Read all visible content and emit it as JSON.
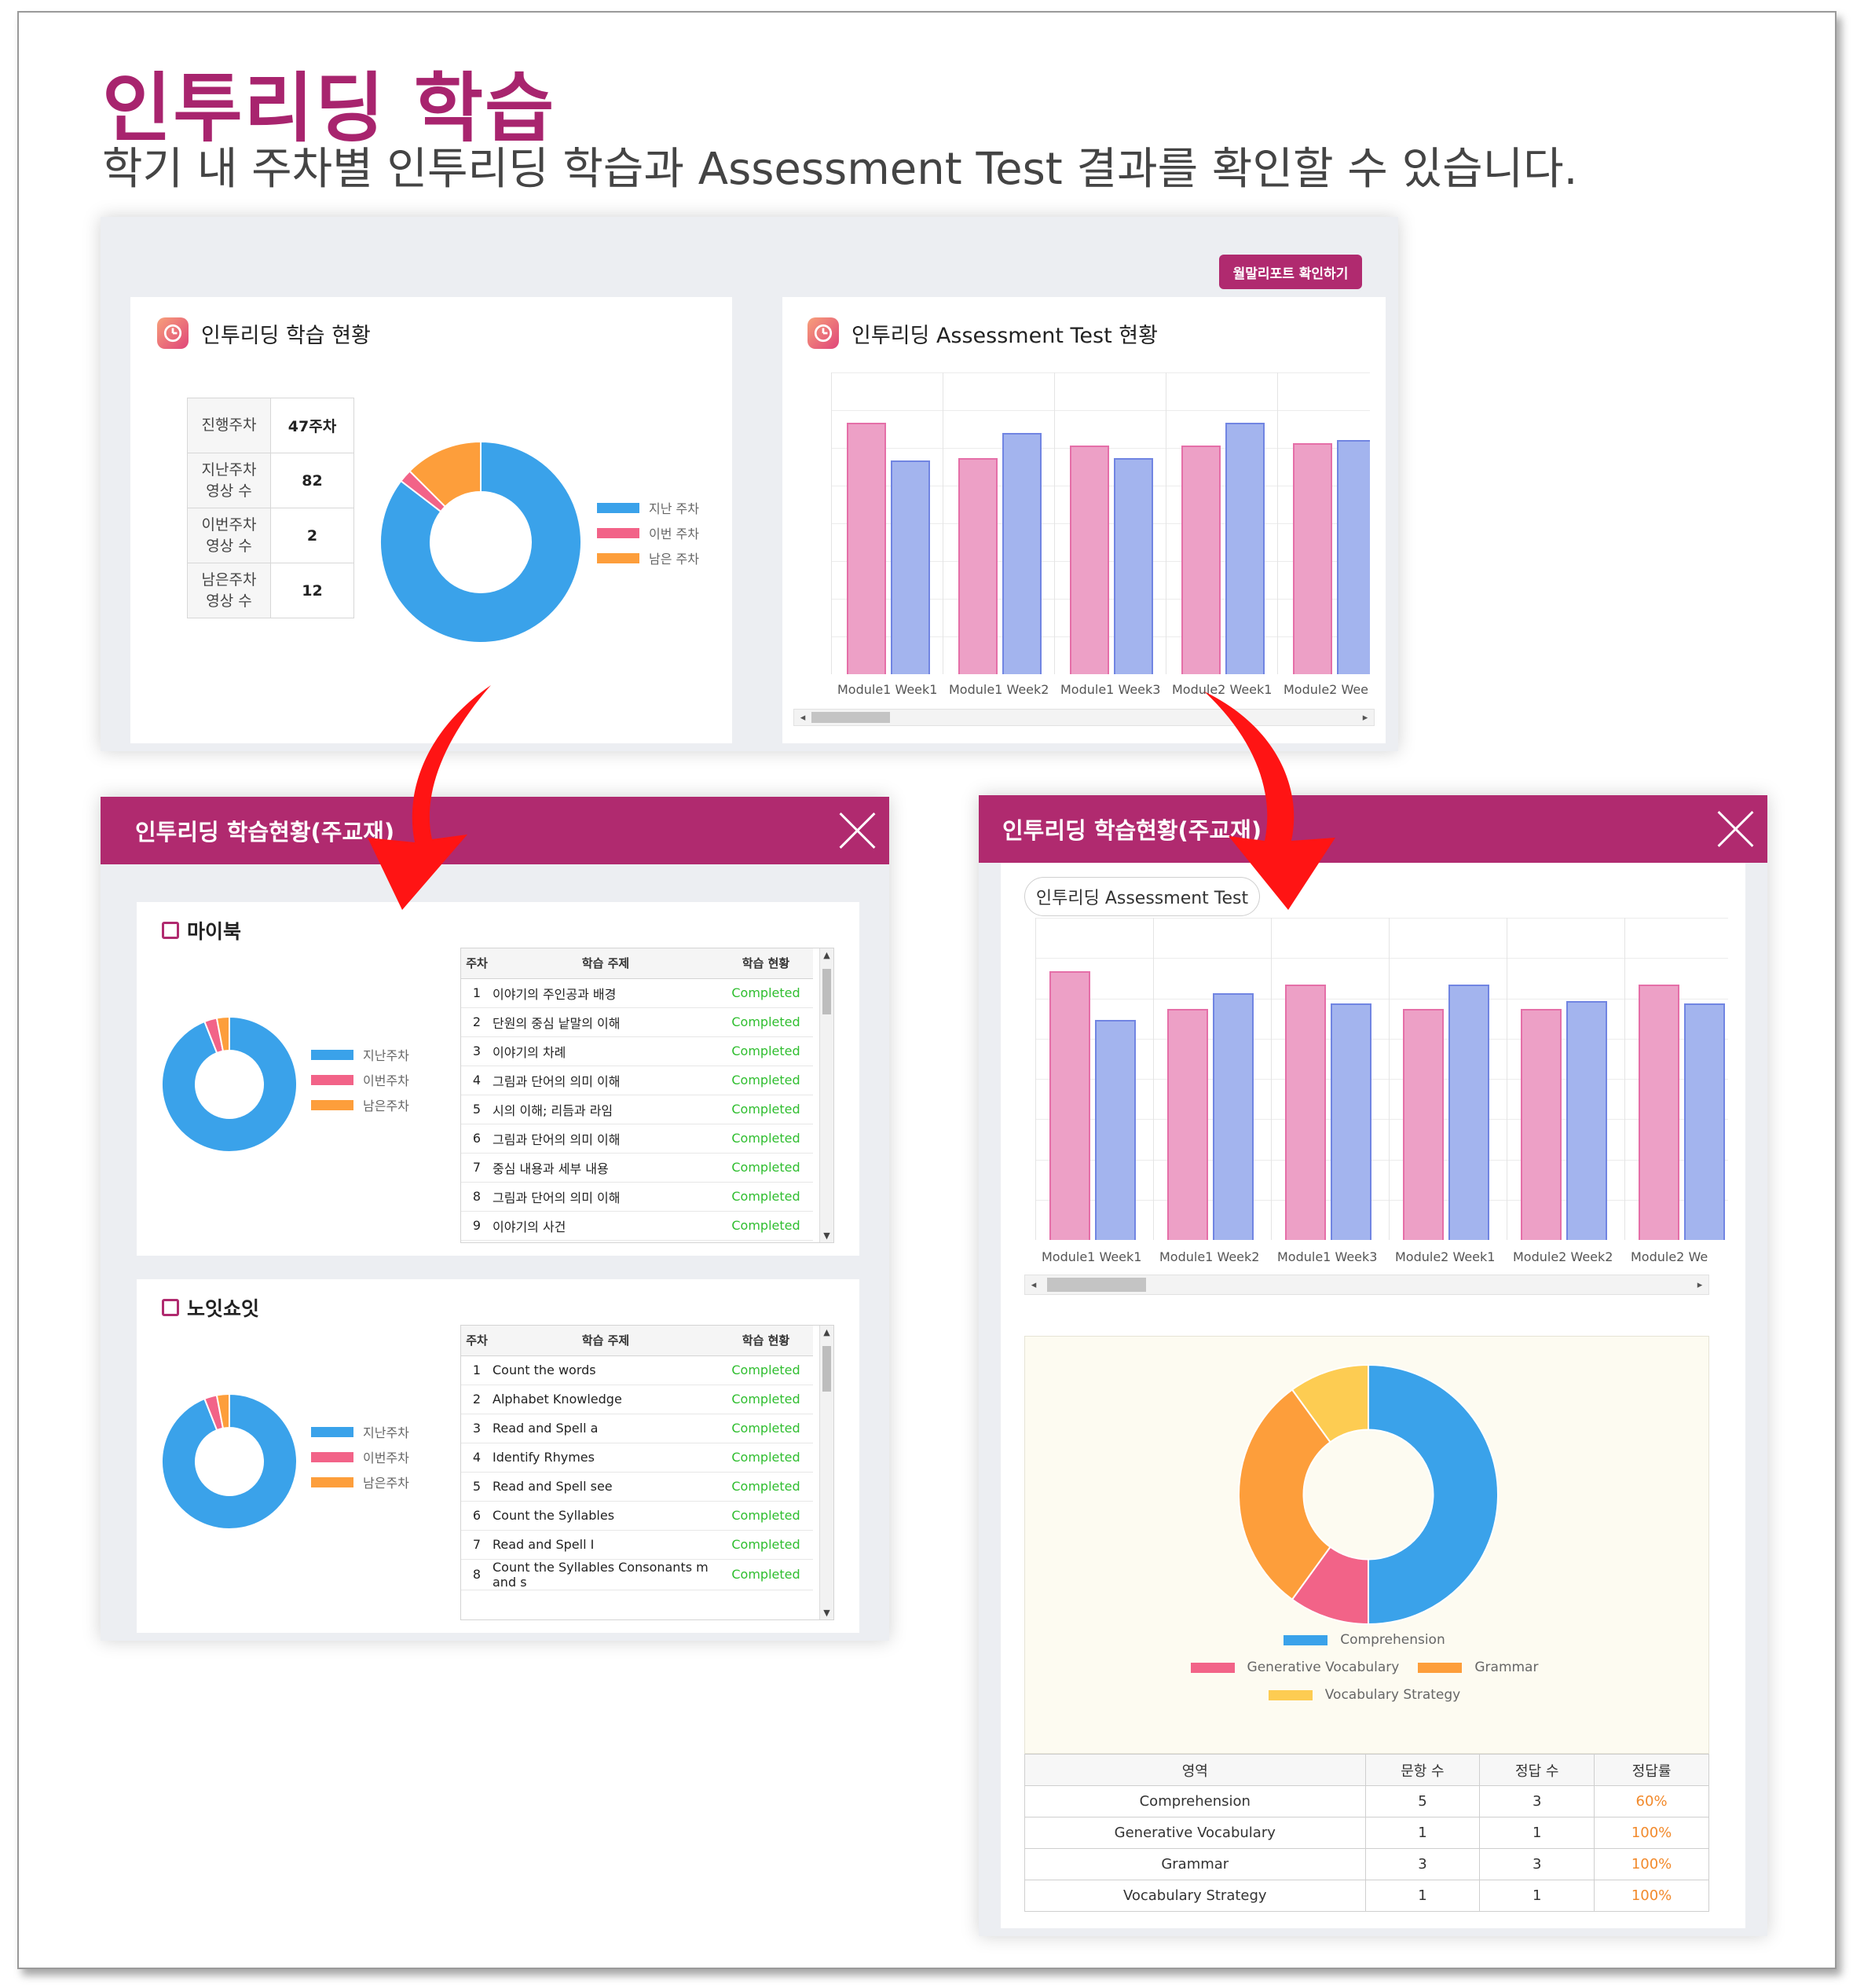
{
  "title": "인투리딩 학습",
  "subtitle": "학기 내 주차별 인투리딩 학습과 Assessment Test 결과를 확인할 수 있습니다.",
  "colors": {
    "brand": "#b02a6f",
    "blue": "#3aa2ea",
    "pink": "#f26388",
    "orange": "#fd9e3b",
    "yellow": "#fdcc52",
    "completed": "#2fbe2f"
  },
  "dashboard": {
    "report_button": "월말리포트 확인하기",
    "study_card": {
      "title": "인투리딩 학습 현황",
      "stats": [
        {
          "label": "진행주차",
          "value": "47주차"
        },
        {
          "label": "지난주차 영상 수",
          "value": "82"
        },
        {
          "label": "이번주차 영상 수",
          "value": "2"
        },
        {
          "label": "남은주차 영상 수",
          "value": "12"
        }
      ],
      "legend": [
        "지난 주차",
        "이번 주차",
        "남은 주차"
      ]
    },
    "test_card": {
      "title": "인투리딩 Assessment Test 현황",
      "categories": [
        "Module1 Week1",
        "Module1 Week2",
        "Module1 Week3",
        "Module2 Week1",
        "Module2 Wee"
      ]
    }
  },
  "chart_data": [
    {
      "type": "pie",
      "name": "dashboard-donut",
      "labels": [
        "지난 주차",
        "이번 주차",
        "남은 주차"
      ],
      "values": [
        82,
        2,
        12
      ],
      "colors": [
        "#3aa2ea",
        "#f26388",
        "#fd9e3b"
      ]
    },
    {
      "type": "bar",
      "name": "dashboard-test",
      "categories": [
        "Module1 Week1",
        "Module1 Week2",
        "Module1 Week3",
        "Module2 Week1",
        "Module2 Wee"
      ],
      "series": [
        {
          "values": [
            100,
            86,
            91,
            91,
            92
          ]
        },
        {
          "values": [
            85,
            96,
            86,
            100,
            93
          ]
        }
      ],
      "ylim": [
        0,
        120
      ]
    },
    {
      "type": "pie",
      "name": "mybook-donut",
      "labels": [
        "지난주차",
        "이번주차",
        "남은주차"
      ],
      "values": [
        94,
        3,
        3
      ]
    },
    {
      "type": "pie",
      "name": "noit-donut",
      "labels": [
        "지난주차",
        "이번주차",
        "남은주차"
      ],
      "values": [
        94,
        3,
        3
      ]
    },
    {
      "type": "bar",
      "name": "modal-test",
      "categories": [
        "Module1 Week1",
        "Module1 Week2",
        "Module1 Week3",
        "Module2 Week1",
        "Module2 Week2",
        "Module2 We"
      ],
      "series": [
        {
          "values": [
            100,
            86,
            95,
            86,
            86,
            95
          ]
        },
        {
          "values": [
            82,
            92,
            88,
            95,
            89,
            88
          ]
        }
      ],
      "ylim": [
        0,
        120
      ]
    },
    {
      "type": "pie",
      "name": "area-donut",
      "labels": [
        "Comprehension",
        "Generative Vocabulary",
        "Grammar",
        "Vocabulary Strategy"
      ],
      "values": [
        5,
        1,
        3,
        1
      ],
      "colors": [
        "#3aa2ea",
        "#f26388",
        "#fd9e3b",
        "#fdcc52"
      ]
    }
  ],
  "left_modal": {
    "title": "인투리딩 학습현황(주교재)",
    "mybook": {
      "title": "마이북",
      "legend": [
        "지난주차",
        "이번주차",
        "남은주차"
      ],
      "headers": [
        "주차",
        "학습 주제",
        "학습 현황"
      ],
      "rows": [
        [
          "1",
          "이야기의 주인공과 배경",
          "Completed"
        ],
        [
          "2",
          "단원의 중심 낱말의 이해",
          "Completed"
        ],
        [
          "3",
          "이야기의 차례",
          "Completed"
        ],
        [
          "4",
          "그림과 단어의 의미 이해",
          "Completed"
        ],
        [
          "5",
          "시의 이해; 리듬과 라임",
          "Completed"
        ],
        [
          "6",
          "그림과 단어의 의미 이해",
          "Completed"
        ],
        [
          "7",
          "중심 내용과 세부 내용",
          "Completed"
        ],
        [
          "8",
          "그림과 단어의 의미 이해",
          "Completed"
        ],
        [
          "9",
          "이야기의 사건",
          "Completed"
        ]
      ]
    },
    "noit": {
      "title": "노잇쇼잇",
      "legend": [
        "지난주차",
        "이번주차",
        "남은주차"
      ],
      "headers": [
        "주차",
        "학습 주제",
        "학습 현황"
      ],
      "rows": [
        [
          "1",
          "Count the words",
          "Completed"
        ],
        [
          "2",
          "Alphabet Knowledge",
          "Completed"
        ],
        [
          "3",
          "Read and Spell a",
          "Completed"
        ],
        [
          "4",
          "Identify Rhymes",
          "Completed"
        ],
        [
          "5",
          "Read and Spell see",
          "Completed"
        ],
        [
          "6",
          "Count the Syllables",
          "Completed"
        ],
        [
          "7",
          "Read and Spell I",
          "Completed"
        ],
        [
          "8",
          "Count the Syllables Consonants m and s",
          "Completed"
        ]
      ]
    }
  },
  "right_modal": {
    "title": "인투리딩 학습현황(주교재)",
    "tab": "인투리딩 Assessment Test",
    "categories": [
      "Module1 Week1",
      "Module1 Week2",
      "Module1 Week3",
      "Module2 Week1",
      "Module2 Week2",
      "Module2 We"
    ],
    "legend": [
      "Comprehension",
      "Generative Vocabulary",
      "Grammar",
      "Vocabulary Strategy"
    ],
    "results": {
      "headers": [
        "영역",
        "문항 수",
        "정답 수",
        "정답률"
      ],
      "rows": [
        [
          "Comprehension",
          "5",
          "3",
          "60%"
        ],
        [
          "Generative Vocabulary",
          "1",
          "1",
          "100%"
        ],
        [
          "Grammar",
          "3",
          "3",
          "100%"
        ],
        [
          "Vocabulary Strategy",
          "1",
          "1",
          "100%"
        ]
      ]
    }
  }
}
